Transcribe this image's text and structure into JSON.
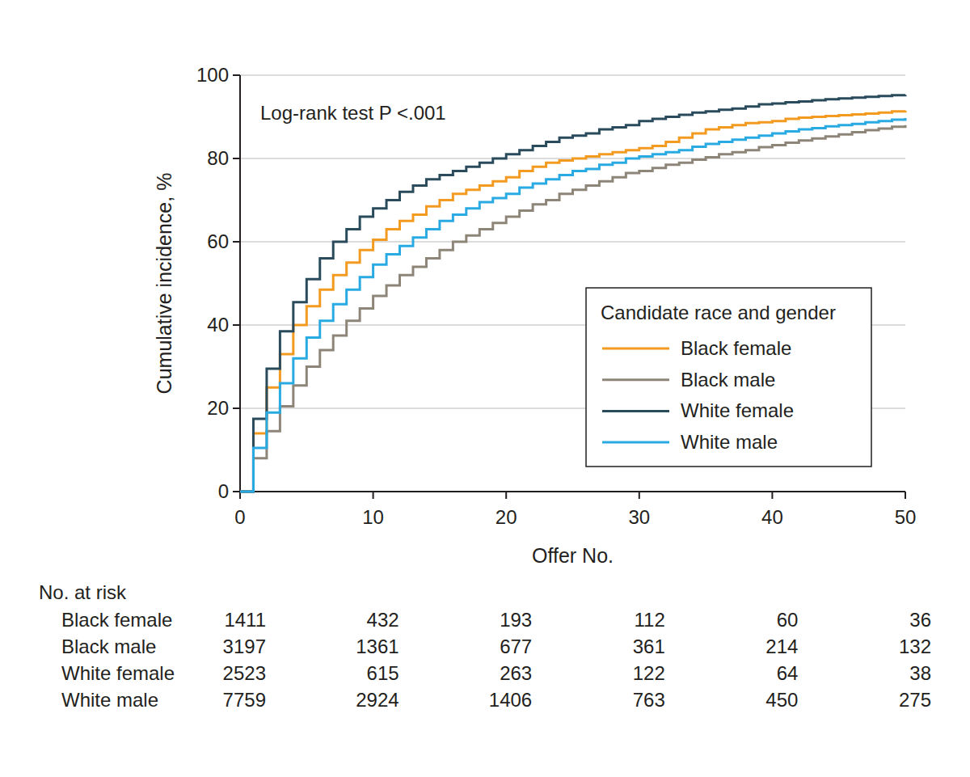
{
  "chart_data": {
    "type": "step",
    "annotation": "Log-rank test P <.001",
    "x_label": "Offer No.",
    "y_label": "Cumulative incidence, %",
    "xlim": [
      0,
      50
    ],
    "xticks": [
      0,
      10,
      20,
      30,
      40,
      50
    ],
    "ylim": [
      0,
      100
    ],
    "yticks": [
      0,
      20,
      40,
      60,
      80,
      100
    ],
    "grid": true,
    "legend": "lower right",
    "legend_title": "Candidate race and gender",
    "x": [
      0,
      1,
      2,
      3,
      4,
      5,
      6,
      7,
      8,
      9,
      10,
      11,
      12,
      13,
      14,
      15,
      16,
      17,
      18,
      19,
      20,
      21,
      22,
      23,
      24,
      25,
      26,
      27,
      28,
      29,
      30,
      31,
      32,
      33,
      34,
      35,
      36,
      37,
      38,
      39,
      40,
      41,
      42,
      43,
      44,
      45,
      46,
      47,
      48,
      49,
      50
    ],
    "series": [
      {
        "name": "Black female",
        "color": "#f39a21",
        "values": [
          0,
          14,
          25,
          33,
          40,
          44.5,
          48.5,
          52,
          55,
          58,
          60.5,
          63,
          65,
          66.5,
          68.5,
          70,
          71.5,
          72.5,
          73.5,
          74.5,
          75.5,
          77,
          78,
          79,
          79.5,
          80,
          80.5,
          81,
          81.5,
          82,
          82.5,
          83,
          84,
          85,
          86,
          87,
          87.5,
          88,
          88.5,
          88.7,
          89,
          89.5,
          89.8,
          90,
          90.2,
          90.4,
          90.6,
          90.8,
          91,
          91.3,
          91.5
        ]
      },
      {
        "name": "Black male",
        "color": "#8e8579",
        "values": [
          0,
          8,
          14.5,
          20.5,
          25.5,
          30,
          34,
          37.5,
          41,
          44,
          47,
          49.5,
          52,
          54,
          56,
          58,
          60,
          61.5,
          63,
          64.5,
          66,
          67.5,
          69,
          70,
          71.5,
          72.5,
          73.5,
          74.5,
          75.5,
          76.5,
          77,
          77.7,
          78.5,
          79,
          79.7,
          80.3,
          81,
          81.5,
          82,
          82.7,
          83.2,
          83.8,
          84.3,
          84.8,
          85.3,
          85.8,
          86.3,
          86.8,
          87.2,
          87.6,
          88
        ]
      },
      {
        "name": "White female",
        "color": "#2a4b5c",
        "values": [
          0,
          17.5,
          29.5,
          38.5,
          45.5,
          51,
          56,
          60,
          63,
          66,
          68,
          70,
          72,
          73.5,
          75,
          76,
          77,
          78,
          79,
          80,
          81,
          82,
          83,
          84,
          85,
          85.5,
          86,
          87,
          87.5,
          88,
          89,
          89.5,
          90,
          90.5,
          91,
          91.3,
          91.7,
          92,
          92.5,
          93,
          93.2,
          93.5,
          93.7,
          94,
          94.2,
          94.4,
          94.6,
          94.8,
          95,
          95.2,
          95.3
        ]
      },
      {
        "name": "White male",
        "color": "#2aaae2",
        "values": [
          0,
          10.5,
          19,
          26,
          32,
          37,
          41,
          45,
          48.5,
          51.5,
          54.5,
          57,
          59,
          61,
          63,
          65,
          66.5,
          68,
          69.5,
          70.5,
          71.5,
          73,
          74,
          75,
          76,
          77,
          77.5,
          78.5,
          79,
          80,
          80.5,
          81,
          81.5,
          82,
          82.8,
          83.5,
          84,
          84.5,
          85,
          85.5,
          86,
          86.5,
          87,
          87.3,
          87.7,
          88,
          88.3,
          88.7,
          89,
          89.3,
          89.7
        ]
      }
    ],
    "risk_table": {
      "title": "No. at risk",
      "x": [
        0,
        10,
        20,
        30,
        40,
        50
      ],
      "rows": [
        {
          "name": "Black female",
          "values": [
            1411,
            432,
            193,
            112,
            60,
            36
          ]
        },
        {
          "name": "Black male",
          "values": [
            3197,
            1361,
            677,
            361,
            214,
            132
          ]
        },
        {
          "name": "White female",
          "values": [
            2523,
            615,
            263,
            122,
            64,
            38
          ]
        },
        {
          "name": "White male",
          "values": [
            7759,
            2924,
            1406,
            763,
            450,
            275
          ]
        }
      ]
    }
  }
}
